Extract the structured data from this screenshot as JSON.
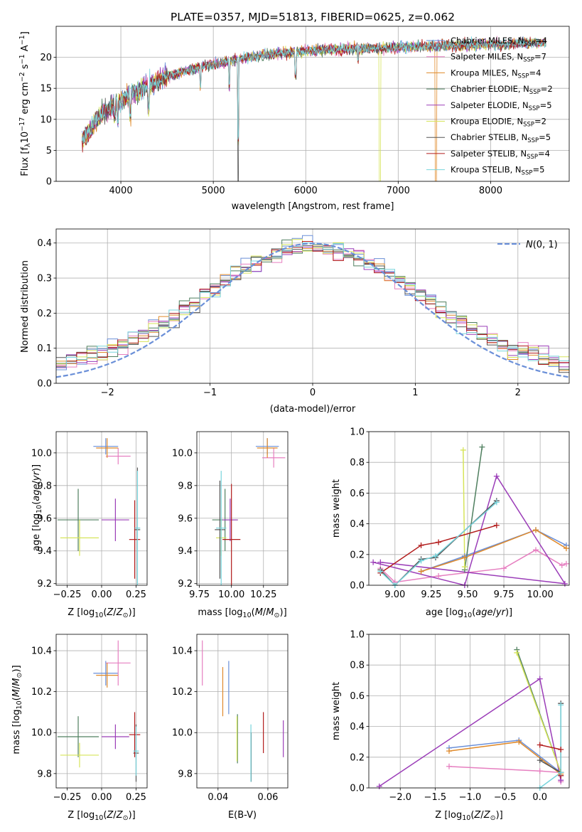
{
  "figure": {
    "title": "PLATE=0357, MJD=51813, FIBERID=0625, z=0.062"
  },
  "series": [
    {
      "name": "Chabrier MILES",
      "nssp": "4",
      "color": "#6a8fd8"
    },
    {
      "name": "Salpeter MILES",
      "nssp": "7",
      "color": "#e67fc0"
    },
    {
      "name": "Kroupa MILES",
      "nssp": "4",
      "color": "#e08a2a"
    },
    {
      "name": "Chabrier ELODIE",
      "nssp": "2",
      "color": "#4f7f5f"
    },
    {
      "name": "Salpeter ELODIE",
      "nssp": "5",
      "color": "#9b3db8"
    },
    {
      "name": "Kroupa ELODIE",
      "nssp": "2",
      "color": "#d6e45a"
    },
    {
      "name": "Chabrier STELIB",
      "nssp": "5",
      "color": "#555555"
    },
    {
      "name": "Salpeter STELIB",
      "nssp": "4",
      "color": "#b21c1c"
    },
    {
      "name": "Kroupa STELIB",
      "nssp": "5",
      "color": "#77d4dc"
    }
  ],
  "chart_data": [
    {
      "id": "spectrum",
      "type": "line",
      "xlabel": "wavelength [Angstrom, rest frame]",
      "ylabel": "Flux [f",
      "xlim": [
        3300,
        8850
      ],
      "ylim": [
        0,
        25
      ],
      "xticks": [
        4000,
        5000,
        6000,
        7000,
        8000
      ],
      "yticks": [
        0,
        5,
        10,
        15,
        20
      ],
      "legend_location": "upper right",
      "envelope": {
        "x": [
          3600,
          3700,
          3800,
          3900,
          4000,
          4100,
          4200,
          4300,
          4400,
          4500,
          4700,
          4900,
          5100,
          5300,
          5500,
          5800,
          6000,
          6200,
          6400,
          6600,
          6800,
          7000,
          7200,
          7400,
          7600,
          7800,
          8000,
          8200,
          8400,
          8600
        ],
        "y": [
          7,
          9,
          11,
          12,
          13,
          14,
          14.8,
          15.5,
          16.2,
          17,
          17.8,
          18.6,
          19.2,
          19.8,
          20.3,
          20.8,
          21,
          21.2,
          21.3,
          21.4,
          21.5,
          21.6,
          21.7,
          21.8,
          21.9,
          22,
          22.1,
          22.2,
          22.3,
          22.4
        ]
      }
    },
    {
      "id": "residuals",
      "type": "histogram",
      "xlabel": "(data-model)/error",
      "ylabel": "Normed distribution",
      "xlim": [
        -2.5,
        2.5
      ],
      "ylim": [
        0,
        0.44
      ],
      "xticks": [
        -2,
        -1,
        0,
        1,
        2
      ],
      "yticks": [
        0.0,
        0.1,
        0.2,
        0.3,
        0.4
      ],
      "legend": "N(0,1)",
      "gaussian": {
        "mean": 0,
        "sigma": 1
      }
    },
    {
      "id": "z_age",
      "type": "errorbar",
      "xlabel": "Z [log",
      "ylabel": "age  [log",
      "xlim": [
        -0.33,
        0.33
      ],
      "ylim": [
        9.19,
        10.13
      ],
      "xticks": [
        -0.25,
        0.0,
        0.25
      ],
      "yticks": [
        9.2,
        9.4,
        9.6,
        9.8,
        10.0
      ],
      "points": [
        {
          "s": 0,
          "x": 0.03,
          "y": 10.04,
          "xe": 0.09,
          "ye": 0.05
        },
        {
          "s": 1,
          "x": 0.12,
          "y": 9.98,
          "xe": 0.09,
          "ye": 0.05
        },
        {
          "s": 2,
          "x": 0.04,
          "y": 10.03,
          "xe": 0.08,
          "ye": 0.06
        },
        {
          "s": 3,
          "x": -0.17,
          "y": 9.59,
          "xe": 0.15,
          "ye": 0.19
        },
        {
          "s": 4,
          "x": 0.1,
          "y": 9.59,
          "xe": 0.1,
          "ye": 0.13
        },
        {
          "s": 5,
          "x": -0.16,
          "y": 9.48,
          "xe": 0.14,
          "ye": 0.11
        },
        {
          "s": 6,
          "x": 0.26,
          "y": 9.53,
          "xe": 0.02,
          "ye": 0.38
        },
        {
          "s": 7,
          "x": 0.24,
          "y": 9.47,
          "xe": 0.04,
          "ye": 0.24
        },
        {
          "s": 8,
          "x": 0.26,
          "y": 9.54,
          "xe": 0.02,
          "ye": 0.35
        }
      ]
    },
    {
      "id": "mass_age",
      "type": "errorbar",
      "xlabel": "mass [log",
      "ylabel": "",
      "xlim": [
        9.73,
        10.44
      ],
      "ylim": [
        9.19,
        10.13
      ],
      "xticks": [
        9.75,
        10.0,
        10.25
      ],
      "yticks": [
        9.2,
        9.4,
        9.6,
        9.8,
        10.0
      ],
      "points": [
        {
          "s": 0,
          "x": 10.28,
          "y": 10.04,
          "xe": 0.09,
          "ye": 0.05
        },
        {
          "s": 1,
          "x": 10.33,
          "y": 9.97,
          "xe": 0.09,
          "ye": 0.06
        },
        {
          "s": 2,
          "x": 10.28,
          "y": 10.03,
          "xe": 0.08,
          "ye": 0.06
        },
        {
          "s": 3,
          "x": 9.95,
          "y": 9.59,
          "xe": 0.1,
          "ye": 0.19
        },
        {
          "s": 4,
          "x": 9.99,
          "y": 9.59,
          "xe": 0.06,
          "ye": 0.13
        },
        {
          "s": 5,
          "x": 9.92,
          "y": 9.48,
          "xe": 0.04,
          "ye": 0.11
        },
        {
          "s": 6,
          "x": 9.91,
          "y": 9.53,
          "xe": 0.04,
          "ye": 0.3
        },
        {
          "s": 7,
          "x": 10.0,
          "y": 9.47,
          "xe": 0.07,
          "ye": 0.34
        },
        {
          "s": 8,
          "x": 9.92,
          "y": 9.54,
          "xe": 0.04,
          "ye": 0.35
        }
      ]
    },
    {
      "id": "age_weight",
      "type": "line",
      "xlabel": "age  [log",
      "ylabel": "mass weight",
      "xlim": [
        8.82,
        10.2
      ],
      "ylim": [
        0,
        1.0
      ],
      "xticks": [
        9.0,
        9.25,
        9.5,
        9.75,
        10.0
      ],
      "yticks": [
        0.0,
        0.2,
        0.4,
        0.6,
        0.8,
        1.0
      ],
      "lines": [
        {
          "s": 0,
          "x": [
            9.18,
            9.48,
            9.97,
            10.18
          ],
          "y": [
            0.09,
            0.19,
            0.36,
            0.26
          ]
        },
        {
          "s": 1,
          "x": [
            8.9,
            9.0,
            9.3,
            9.75,
            9.97,
            10.15,
            10.18
          ],
          "y": [
            0.11,
            0.02,
            0.06,
            0.11,
            0.23,
            0.13,
            0.14
          ]
        },
        {
          "s": 2,
          "x": [
            9.18,
            9.48,
            9.97,
            10.18
          ],
          "y": [
            0.09,
            0.18,
            0.36,
            0.24
          ]
        },
        {
          "s": 3,
          "x": [
            9.48,
            9.6
          ],
          "y": [
            0.1,
            0.9
          ]
        },
        {
          "s": 4,
          "x": [
            8.85,
            9.48,
            9.7,
            10.17,
            8.9
          ],
          "y": [
            0.15,
            0.0,
            0.71,
            0.01,
            0.15
          ]
        },
        {
          "s": 5,
          "x": [
            9.47,
            9.48
          ],
          "y": [
            0.88,
            0.12
          ]
        },
        {
          "s": 6,
          "x": [
            8.9,
            9.0,
            9.18,
            9.28,
            9.7
          ],
          "y": [
            0.1,
            0.0,
            0.17,
            0.18,
            0.55
          ]
        },
        {
          "s": 7,
          "x": [
            8.9,
            9.18,
            9.3,
            9.7
          ],
          "y": [
            0.08,
            0.26,
            0.28,
            0.39
          ]
        },
        {
          "s": 8,
          "x": [
            8.9,
            9.0,
            9.18,
            9.28,
            9.7
          ],
          "y": [
            0.09,
            0.0,
            0.16,
            0.19,
            0.54
          ]
        }
      ]
    },
    {
      "id": "z_mass",
      "type": "errorbar",
      "xlabel": "Z [log",
      "ylabel": "mass [log",
      "xlim": [
        -0.33,
        0.33
      ],
      "ylim": [
        9.73,
        10.48
      ],
      "xticks": [
        -0.25,
        0.0,
        0.25
      ],
      "yticks": [
        9.8,
        10.0,
        10.2,
        10.4
      ],
      "points": [
        {
          "s": 0,
          "x": 0.03,
          "y": 10.29,
          "xe": 0.09,
          "ye": 0.06
        },
        {
          "s": 1,
          "x": 0.12,
          "y": 10.34,
          "xe": 0.09,
          "ye": 0.11
        },
        {
          "s": 2,
          "x": 0.04,
          "y": 10.28,
          "xe": 0.08,
          "ye": 0.06
        },
        {
          "s": 3,
          "x": -0.17,
          "y": 9.98,
          "xe": 0.15,
          "ye": 0.1
        },
        {
          "s": 4,
          "x": 0.1,
          "y": 9.98,
          "xe": 0.1,
          "ye": 0.06
        },
        {
          "s": 5,
          "x": -0.16,
          "y": 9.89,
          "xe": 0.14,
          "ye": 0.06
        },
        {
          "s": 6,
          "x": 0.25,
          "y": 9.9,
          "xe": 0.02,
          "ye": 0.14
        },
        {
          "s": 7,
          "x": 0.24,
          "y": 9.99,
          "xe": 0.04,
          "ye": 0.11
        },
        {
          "s": 8,
          "x": 0.25,
          "y": 9.91,
          "xe": 0.02,
          "ye": 0.12
        }
      ]
    },
    {
      "id": "ebv_mass",
      "type": "errorbar",
      "xlabel": "E(B-V)",
      "ylabel": "",
      "xlim": [
        0.0315,
        0.068
      ],
      "ylim": [
        9.73,
        10.48
      ],
      "xticks": [
        0.04,
        0.06
      ],
      "yticks": [
        9.8,
        10.0,
        10.2,
        10.4
      ],
      "points": [
        {
          "s": 0,
          "x": 0.0443,
          "y": 10.22,
          "xe": 0.0,
          "ye": 0.13
        },
        {
          "s": 1,
          "x": 0.0337,
          "y": 10.34,
          "xe": 0.0,
          "ye": 0.11
        },
        {
          "s": 2,
          "x": 0.0419,
          "y": 10.2,
          "xe": 0.0,
          "ye": 0.12
        },
        {
          "s": 3,
          "x": 0.0478,
          "y": 9.97,
          "xe": 0.0,
          "ye": 0.12
        },
        {
          "s": 4,
          "x": 0.0662,
          "y": 9.97,
          "xe": 0.0,
          "ye": 0.09
        },
        {
          "s": 5,
          "x": 0.0476,
          "y": 9.97,
          "xe": 0.0,
          "ye": 0.11
        },
        {
          "s": 6,
          "x": 0.0533,
          "y": 9.88,
          "xe": 0.0,
          "ye": 0.12
        },
        {
          "s": 7,
          "x": 0.0582,
          "y": 10.0,
          "xe": 0.0,
          "ye": 0.1
        },
        {
          "s": 8,
          "x": 0.0532,
          "y": 9.9,
          "xe": 0.0,
          "ye": 0.14
        }
      ]
    },
    {
      "id": "z_weight",
      "type": "line",
      "xlabel": "Z [log",
      "ylabel": "mass weight",
      "xlim": [
        -2.45,
        0.42
      ],
      "ylim": [
        0,
        1.0
      ],
      "xticks": [
        -2.0,
        -1.5,
        -1.0,
        -0.5,
        0.0
      ],
      "yticks": [
        0.0,
        0.2,
        0.4,
        0.6,
        0.8,
        1.0
      ],
      "lines": [
        {
          "s": 0,
          "x": [
            -1.3,
            -0.3,
            0.3,
            0.3
          ],
          "y": [
            0.26,
            0.31,
            0.1,
            0.08
          ]
        },
        {
          "s": 1,
          "x": [
            -1.3,
            0.0,
            0.3,
            0.3
          ],
          "y": [
            0.14,
            0.11,
            0.1,
            0.04
          ]
        },
        {
          "s": 2,
          "x": [
            -1.3,
            -0.3,
            0.3,
            0.3
          ],
          "y": [
            0.24,
            0.3,
            0.09,
            0.1
          ]
        },
        {
          "s": 3,
          "x": [
            -0.33,
            0.3
          ],
          "y": [
            0.9,
            0.1
          ]
        },
        {
          "s": 4,
          "x": [
            -2.3,
            0.0,
            0.3
          ],
          "y": [
            0.01,
            0.71,
            0.05
          ]
        },
        {
          "s": 5,
          "x": [
            -0.33,
            0.3
          ],
          "y": [
            0.88,
            0.1
          ]
        },
        {
          "s": 6,
          "x": [
            0.0,
            0.3,
            0.3
          ],
          "y": [
            0.18,
            0.1,
            0.55
          ]
        },
        {
          "s": 7,
          "x": [
            0.0,
            0.3,
            0.3
          ],
          "y": [
            0.28,
            0.25,
            0.08
          ]
        },
        {
          "s": 8,
          "x": [
            0.0,
            0.3,
            0.3
          ],
          "y": [
            0.0,
            0.1,
            0.54
          ]
        }
      ]
    }
  ]
}
